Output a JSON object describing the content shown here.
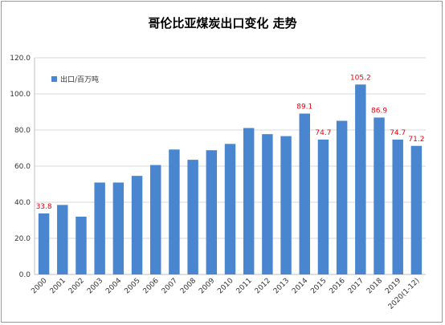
{
  "chart_data": {
    "type": "bar",
    "title": "哥伦比亚煤炭出口变化 走势",
    "legend": {
      "label": "出口/百万吨",
      "placement": "top-left"
    },
    "categories": [
      "2000",
      "2001",
      "2002",
      "2003",
      "2004",
      "2005",
      "2006",
      "2007",
      "2008",
      "2009",
      "2010",
      "2011",
      "2012",
      "2013",
      "2014",
      "2015",
      "2016",
      "2017",
      "2018",
      "2019",
      "2020(1-12)"
    ],
    "series": [
      {
        "name": "出口/百万吨",
        "values": [
          33.8,
          38.5,
          32.0,
          50.9,
          50.9,
          54.6,
          60.6,
          69.2,
          63.5,
          68.8,
          72.3,
          81.1,
          77.7,
          76.6,
          89.1,
          74.7,
          85.1,
          105.2,
          86.9,
          74.7,
          71.2
        ]
      }
    ],
    "data_labels": [
      {
        "index": 0,
        "text": "33.8"
      },
      {
        "index": 14,
        "text": "89.1"
      },
      {
        "index": 15,
        "text": "74.7"
      },
      {
        "index": 17,
        "text": "105.2"
      },
      {
        "index": 18,
        "text": "86.9"
      },
      {
        "index": 19,
        "text": "74.7"
      },
      {
        "index": 20,
        "text": "71.2"
      }
    ],
    "yticks": [
      "0.0",
      "20.0",
      "40.0",
      "60.0",
      "80.0",
      "100.0",
      "120.0"
    ],
    "ylim": [
      0,
      120
    ],
    "grid": true,
    "colors": {
      "bar": "#4a86d0",
      "label": "#e60012",
      "grid": "#d9d9d9"
    }
  }
}
